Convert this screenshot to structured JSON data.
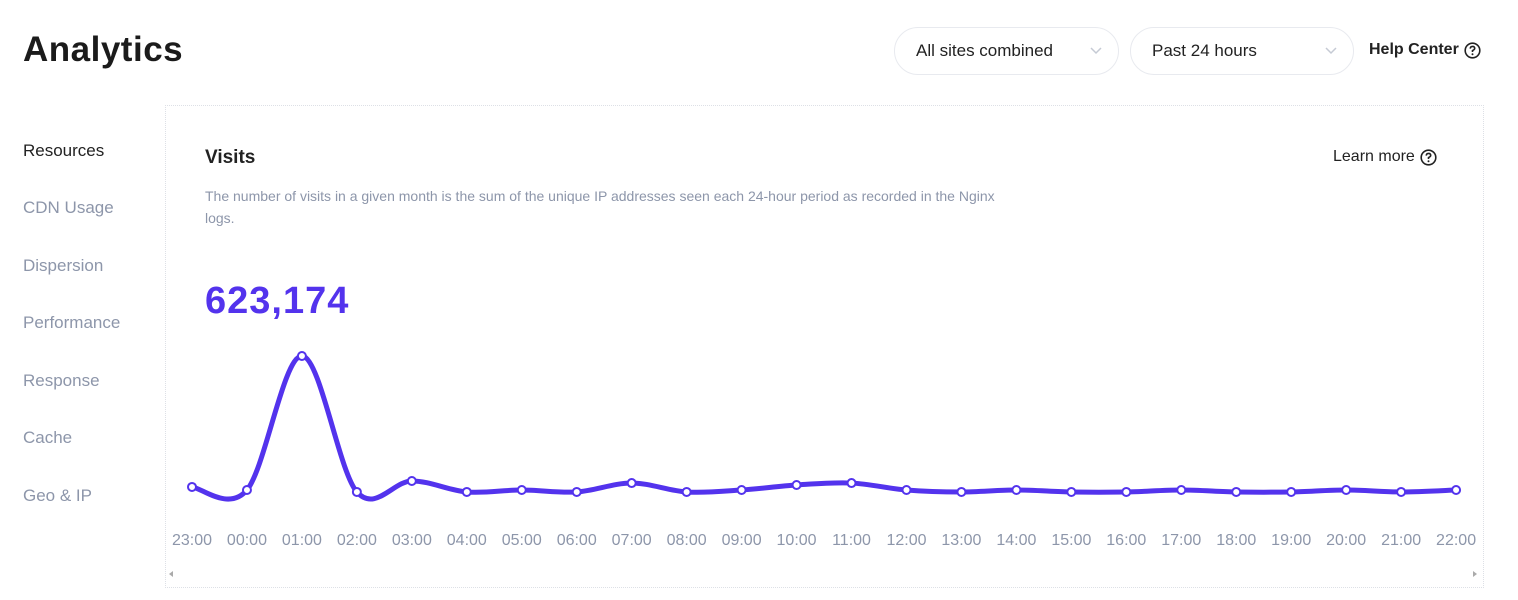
{
  "header": {
    "title": "Analytics",
    "filters": [
      "All sites combined",
      "Past 24 hours"
    ],
    "help": "Help Center"
  },
  "nav": [
    "Resources",
    "CDN Usage",
    "Dispersion",
    "Performance",
    "Response",
    "Cache",
    "Geo & IP"
  ],
  "panel": {
    "title": "Visits",
    "link": "Learn more",
    "description": "The number of visits in a given month is the sum of the unique IP addresses seen each 24-hour period as recorded in the Nginx logs.",
    "total": "623,174"
  },
  "chart_data": {
    "type": "line",
    "color": "#5333ed",
    "categories": [
      "23:00",
      "00:00",
      "01:00",
      "02:00",
      "03:00",
      "04:00",
      "05:00",
      "06:00",
      "07:00",
      "08:00",
      "09:00",
      "10:00",
      "11:00",
      "12:00",
      "13:00",
      "14:00",
      "15:00",
      "16:00",
      "17:00",
      "18:00",
      "19:00",
      "20:00",
      "21:00",
      "22:00"
    ],
    "values": [
      23800,
      21600,
      118100,
      20200,
      28100,
      20200,
      21600,
      20200,
      26600,
      20200,
      21600,
      25200,
      26600,
      21600,
      20200,
      21600,
      20200,
      20200,
      21600,
      20200,
      20200,
      21600,
      20200,
      21600
    ]
  }
}
